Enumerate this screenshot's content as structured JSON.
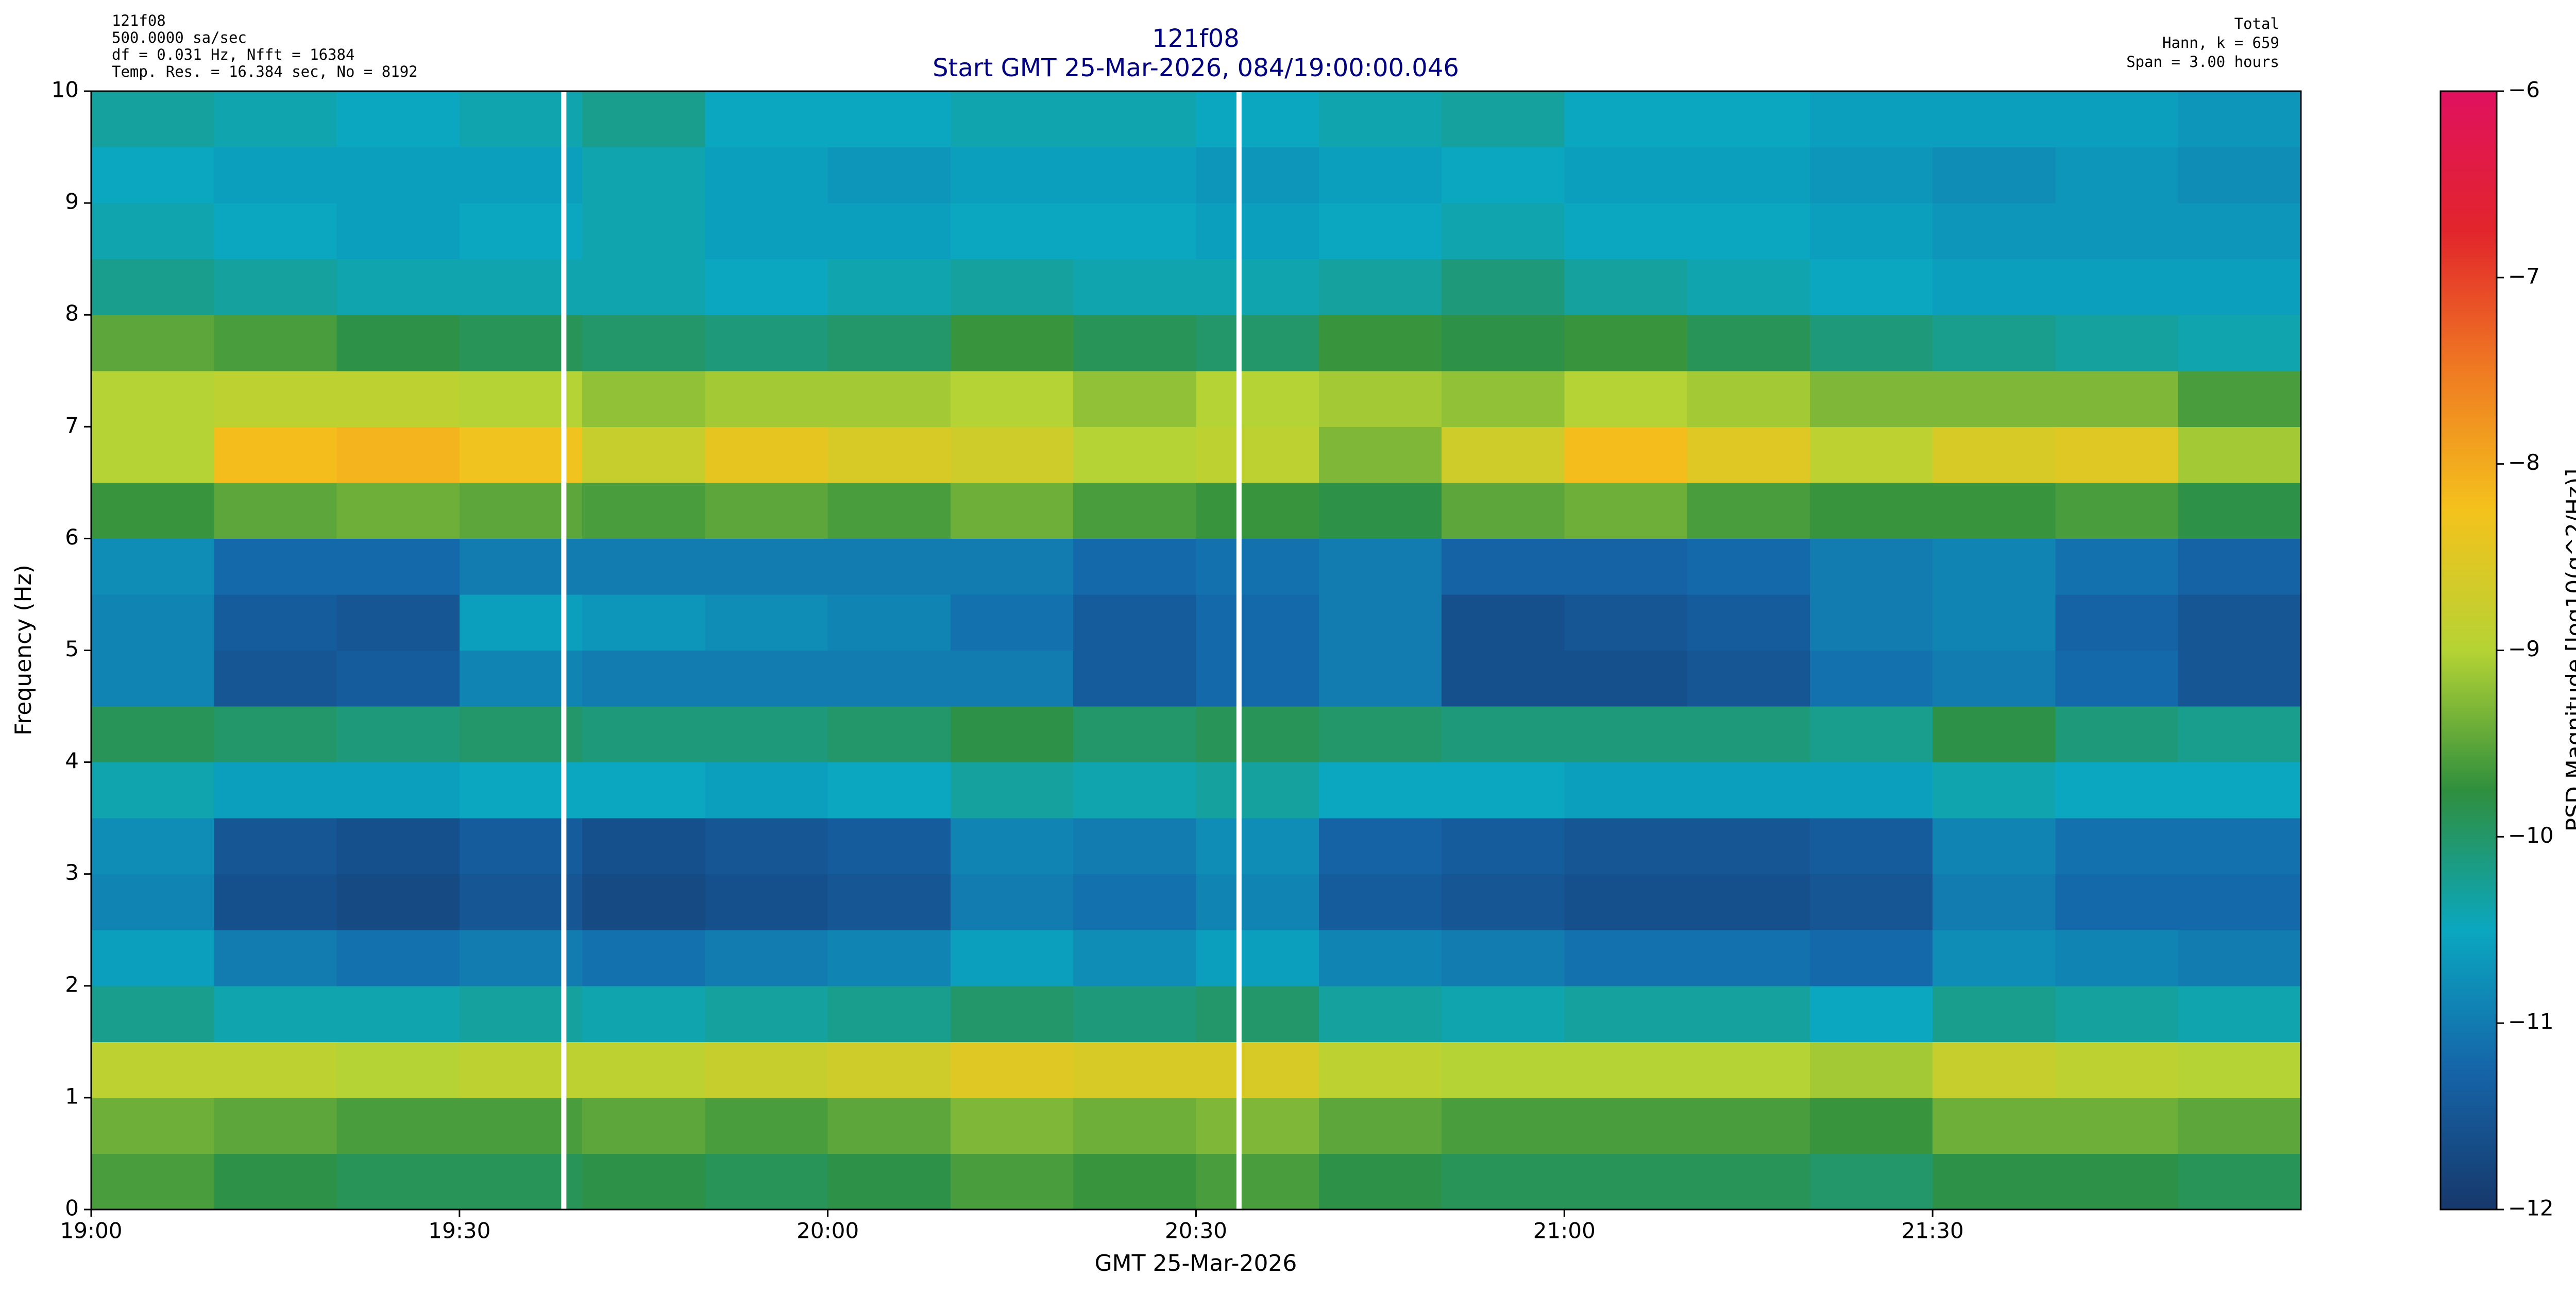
{
  "chart_data": {
    "type": "heatmap",
    "title": "121f08",
    "subtitle": "Start GMT 25-Mar-2026, 084/19:00:00.046",
    "header_left": [
      "121f08",
      "500.0000 sa/sec",
      "df = 0.031 Hz,  Nfft = 16384",
      "Temp. Res. = 16.384 sec, No = 8192"
    ],
    "header_right": [
      "Total",
      "Hann, k = 659",
      "Span = 3.00 hours"
    ],
    "x_label": "GMT 25-Mar-2026",
    "y_label": "Frequency (Hz)",
    "colorbar_label": "PSD Magnitude [log10(g^2/Hz)]",
    "xlim": [
      0,
      180
    ],
    "xticks": [
      {
        "value": 0,
        "label": "19:00"
      },
      {
        "value": 30,
        "label": "19:30"
      },
      {
        "value": 60,
        "label": "20:00"
      },
      {
        "value": 90,
        "label": "20:30"
      },
      {
        "value": 120,
        "label": "21:00"
      },
      {
        "value": 150,
        "label": "21:30"
      }
    ],
    "ylim": [
      0,
      10
    ],
    "yticks": [
      0,
      1,
      2,
      3,
      4,
      5,
      6,
      7,
      8,
      9,
      10
    ],
    "zlim": [
      -12,
      -6
    ],
    "zticks": [
      {
        "value": -12,
        "label": "−12"
      },
      {
        "value": -11,
        "label": "−11"
      },
      {
        "value": -10,
        "label": "−10"
      },
      {
        "value": -9,
        "label": "−9"
      },
      {
        "value": -8,
        "label": "−8"
      },
      {
        "value": -7,
        "label": "−7"
      },
      {
        "value": -6,
        "label": "−6"
      }
    ],
    "colormap": [
      "#17386b",
      "#1565a8",
      "#0ba7c0",
      "#2f8f3e",
      "#b5d334",
      "#f4c21c",
      "#ef7b22",
      "#e2252c",
      "#e0115f"
    ],
    "gaps": [
      38.5,
      93.5
    ],
    "xbins": [
      0,
      10,
      20,
      30,
      40,
      50,
      60,
      70,
      80,
      90,
      100,
      110,
      120,
      130,
      140,
      150,
      160,
      170,
      180
    ],
    "ybins": [
      0,
      0.5,
      1,
      1.5,
      2,
      2.5,
      3,
      3.5,
      4,
      4.5,
      5,
      5.5,
      6,
      6.5,
      7,
      7.5,
      8,
      8.5,
      9,
      9.5,
      10
    ],
    "z": [
      [
        -9.6,
        -9.8,
        -9.9,
        -9.9,
        -9.8,
        -9.9,
        -9.8,
        -9.6,
        -9.7,
        -9.6,
        -9.8,
        -9.9,
        -9.9,
        -9.9,
        -10.0,
        -9.8,
        -9.8,
        -9.9
      ],
      [
        -9.4,
        -9.5,
        -9.6,
        -9.6,
        -9.5,
        -9.6,
        -9.5,
        -9.3,
        -9.4,
        -9.3,
        -9.5,
        -9.6,
        -9.6,
        -9.6,
        -9.7,
        -9.4,
        -9.4,
        -9.5
      ],
      [
        -8.9,
        -8.9,
        -9.0,
        -8.9,
        -8.9,
        -8.8,
        -8.7,
        -8.5,
        -8.6,
        -8.6,
        -8.9,
        -9.0,
        -9.0,
        -9.0,
        -9.1,
        -8.8,
        -8.9,
        -9.0
      ],
      [
        -10.2,
        -10.4,
        -10.4,
        -10.3,
        -10.4,
        -10.3,
        -10.2,
        -10.0,
        -10.1,
        -10.0,
        -10.3,
        -10.4,
        -10.3,
        -10.3,
        -10.5,
        -10.2,
        -10.3,
        -10.4
      ],
      [
        -10.6,
        -11.0,
        -11.1,
        -11.0,
        -11.1,
        -11.0,
        -10.9,
        -10.6,
        -10.8,
        -10.6,
        -10.9,
        -11.0,
        -11.1,
        -11.1,
        -11.2,
        -10.8,
        -10.9,
        -11.0
      ],
      [
        -10.9,
        -11.6,
        -11.7,
        -11.5,
        -11.7,
        -11.6,
        -11.5,
        -11.0,
        -11.1,
        -10.9,
        -11.4,
        -11.5,
        -11.6,
        -11.6,
        -11.5,
        -11.0,
        -11.2,
        -11.2
      ],
      [
        -10.8,
        -11.5,
        -11.6,
        -11.4,
        -11.6,
        -11.5,
        -11.4,
        -10.9,
        -11.0,
        -10.8,
        -11.3,
        -11.4,
        -11.5,
        -11.5,
        -11.4,
        -10.9,
        -11.1,
        -11.1
      ],
      [
        -10.4,
        -10.6,
        -10.6,
        -10.5,
        -10.5,
        -10.6,
        -10.5,
        -10.3,
        -10.4,
        -10.3,
        -10.5,
        -10.5,
        -10.6,
        -10.6,
        -10.6,
        -10.4,
        -10.5,
        -10.5
      ],
      [
        -9.9,
        -10.0,
        -10.1,
        -10.0,
        -10.1,
        -10.1,
        -10.0,
        -9.8,
        -10.0,
        -9.9,
        -10.0,
        -10.1,
        -10.1,
        -10.1,
        -10.2,
        -9.8,
        -10.1,
        -10.2
      ],
      [
        -10.9,
        -11.5,
        -11.4,
        -10.9,
        -11.0,
        -11.0,
        -11.0,
        -11.0,
        -11.4,
        -11.2,
        -11.0,
        -11.6,
        -11.6,
        -11.5,
        -11.1,
        -11.0,
        -11.2,
        -11.5
      ],
      [
        -10.9,
        -11.4,
        -11.5,
        -10.6,
        -10.7,
        -10.8,
        -10.9,
        -11.1,
        -11.4,
        -11.2,
        -11.0,
        -11.6,
        -11.5,
        -11.4,
        -11.0,
        -10.9,
        -11.3,
        -11.5
      ],
      [
        -10.8,
        -11.2,
        -11.2,
        -11.0,
        -11.0,
        -11.0,
        -11.0,
        -11.0,
        -11.2,
        -11.1,
        -11.0,
        -11.3,
        -11.3,
        -11.2,
        -11.0,
        -10.9,
        -11.1,
        -11.3
      ],
      [
        -9.7,
        -9.5,
        -9.4,
        -9.5,
        -9.6,
        -9.5,
        -9.6,
        -9.4,
        -9.6,
        -9.7,
        -9.8,
        -9.5,
        -9.4,
        -9.6,
        -9.7,
        -9.7,
        -9.6,
        -9.8
      ],
      [
        -9.0,
        -8.2,
        -8.1,
        -8.3,
        -8.8,
        -8.4,
        -8.6,
        -8.7,
        -9.0,
        -8.9,
        -9.3,
        -8.7,
        -8.2,
        -8.5,
        -8.9,
        -8.6,
        -8.5,
        -9.1
      ],
      [
        -9.0,
        -8.9,
        -8.9,
        -9.0,
        -9.2,
        -9.1,
        -9.1,
        -9.0,
        -9.2,
        -9.0,
        -9.1,
        -9.2,
        -9.0,
        -9.1,
        -9.3,
        -9.3,
        -9.3,
        -9.6
      ],
      [
        -9.5,
        -9.6,
        -9.8,
        -9.9,
        -10.0,
        -10.1,
        -10.0,
        -9.7,
        -9.9,
        -10.0,
        -9.7,
        -9.8,
        -9.7,
        -9.9,
        -10.1,
        -10.2,
        -10.3,
        -10.4
      ],
      [
        -10.2,
        -10.3,
        -10.4,
        -10.4,
        -10.4,
        -10.5,
        -10.4,
        -10.3,
        -10.4,
        -10.4,
        -10.3,
        -10.1,
        -10.3,
        -10.4,
        -10.5,
        -10.6,
        -10.6,
        -10.6
      ],
      [
        -10.4,
        -10.5,
        -10.6,
        -10.5,
        -10.4,
        -10.6,
        -10.6,
        -10.5,
        -10.5,
        -10.6,
        -10.5,
        -10.4,
        -10.5,
        -10.5,
        -10.6,
        -10.7,
        -10.7,
        -10.7
      ],
      [
        -10.5,
        -10.6,
        -10.6,
        -10.6,
        -10.4,
        -10.6,
        -10.7,
        -10.6,
        -10.6,
        -10.7,
        -10.6,
        -10.5,
        -10.6,
        -10.6,
        -10.7,
        -10.8,
        -10.7,
        -10.8
      ],
      [
        -10.3,
        -10.4,
        -10.5,
        -10.4,
        -10.2,
        -10.5,
        -10.5,
        -10.4,
        -10.4,
        -10.5,
        -10.4,
        -10.3,
        -10.5,
        -10.5,
        -10.6,
        -10.6,
        -10.6,
        -10.7
      ]
    ]
  }
}
